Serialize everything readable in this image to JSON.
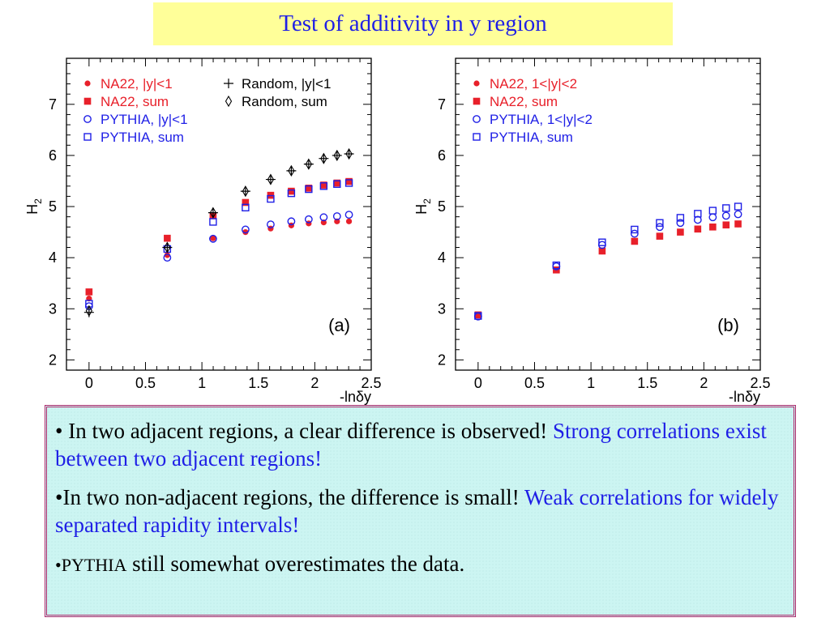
{
  "title": "Test of additivity in y region",
  "bullets": [
    {
      "marker": "•",
      "text": " In two adjacent regions, a clear difference is observed! ",
      "highlight": "Strong correlations exist between two adjacent regions!"
    },
    {
      "marker": "•",
      "text": "In two non-adjacent regions, the difference is small! ",
      "highlight": "Weak correlations for widely separated rapidity intervals!"
    },
    {
      "marker": "•",
      "smallword": "PYTHIA",
      "text": " still somewhat overestimates the data."
    }
  ],
  "chart_data": [
    {
      "type": "scatter",
      "panel_label": "(a)",
      "xlabel": "-lnδy",
      "ylabel": "H2",
      "xlim": [
        -0.2,
        2.5
      ],
      "ylim": [
        1.8,
        7.9
      ],
      "xticks": [
        "0",
        "0.5",
        "1",
        "1.5",
        "2",
        "2.5"
      ],
      "yticks": [
        "2",
        "3",
        "4",
        "5",
        "6",
        "7"
      ],
      "legend_position": "top-left",
      "series": [
        {
          "name": "NA22, |y|<1",
          "marker": "dot",
          "color": "#e8202a",
          "x": [
            0,
            0.693,
            1.099,
            1.386,
            1.609,
            1.792,
            1.946,
            2.079,
            2.197,
            2.303
          ],
          "y": [
            3.2,
            4.05,
            4.38,
            4.5,
            4.57,
            4.63,
            4.67,
            4.69,
            4.71,
            4.71
          ]
        },
        {
          "name": "NA22, sum",
          "marker": "filled-square",
          "color": "#e8202a",
          "x": [
            0,
            0.693,
            1.099,
            1.386,
            1.609,
            1.792,
            1.946,
            2.079,
            2.197,
            2.303
          ],
          "y": [
            3.33,
            4.38,
            4.82,
            5.08,
            5.22,
            5.3,
            5.36,
            5.42,
            5.46,
            5.49
          ]
        },
        {
          "name": "PYTHIA, |y|<1",
          "marker": "open-circle",
          "color": "#1f1fe6",
          "x": [
            0,
            0.693,
            1.099,
            1.386,
            1.609,
            1.792,
            1.946,
            2.079,
            2.197,
            2.303
          ],
          "y": [
            3.05,
            4.0,
            4.37,
            4.55,
            4.65,
            4.71,
            4.75,
            4.79,
            4.81,
            4.84
          ]
        },
        {
          "name": "PYTHIA,  sum",
          "marker": "open-square",
          "color": "#1f1fe6",
          "x": [
            0,
            0.693,
            1.099,
            1.386,
            1.609,
            1.792,
            1.946,
            2.079,
            2.197,
            2.303
          ],
          "y": [
            3.1,
            4.17,
            4.7,
            4.98,
            5.15,
            5.26,
            5.34,
            5.4,
            5.44,
            5.46
          ]
        },
        {
          "name": "Random, |y|<1",
          "marker": "cross",
          "color": "#000000",
          "x": [
            0,
            0.693,
            1.099,
            1.386,
            1.609,
            1.792,
            1.946,
            2.079,
            2.197,
            2.303
          ],
          "y": [
            2.93,
            4.2,
            4.88,
            5.3,
            5.53,
            5.7,
            5.83,
            5.94,
            6.0,
            6.03
          ]
        },
        {
          "name": "Random, sum",
          "marker": "diamond",
          "color": "#000000",
          "x": [
            0,
            0.693,
            1.099,
            1.386,
            1.609,
            1.792,
            1.946,
            2.079,
            2.197,
            2.303
          ],
          "y": [
            2.96,
            4.2,
            4.88,
            5.3,
            5.53,
            5.7,
            5.83,
            5.94,
            6.0,
            6.03
          ]
        }
      ]
    },
    {
      "type": "scatter",
      "panel_label": "(b)",
      "xlabel": "-lnδy",
      "ylabel": "H2",
      "xlim": [
        -0.2,
        2.5
      ],
      "ylim": [
        1.8,
        7.9
      ],
      "xticks": [
        "0",
        "0.5",
        "1",
        "1.5",
        "2",
        "2.5"
      ],
      "yticks": [
        "2",
        "3",
        "4",
        "5",
        "6",
        "7"
      ],
      "legend_position": "top-left",
      "series": [
        {
          "name": "NA22,  1<|y|<2",
          "marker": "dot",
          "color": "#e8202a",
          "x": [
            0,
            0.693,
            1.099,
            1.386,
            1.609,
            1.792,
            1.946,
            2.079,
            2.197,
            2.303
          ],
          "y": [
            2.87,
            3.75,
            4.12,
            4.32,
            4.42,
            4.5,
            4.56,
            4.6,
            4.63,
            4.65
          ]
        },
        {
          "name": "NA22,  sum",
          "marker": "filled-square",
          "color": "#e8202a",
          "x": [
            0,
            0.693,
            1.099,
            1.386,
            1.609,
            1.792,
            1.946,
            2.079,
            2.197,
            2.303
          ],
          "y": [
            2.88,
            3.76,
            4.13,
            4.32,
            4.42,
            4.5,
            4.56,
            4.6,
            4.64,
            4.66
          ]
        },
        {
          "name": "PYTHIA,  1<|y|<2",
          "marker": "open-circle",
          "color": "#1f1fe6",
          "x": [
            0,
            0.693,
            1.099,
            1.386,
            1.609,
            1.792,
            1.946,
            2.079,
            2.197,
            2.303
          ],
          "y": [
            2.85,
            3.83,
            4.25,
            4.47,
            4.6,
            4.68,
            4.74,
            4.79,
            4.82,
            4.85
          ]
        },
        {
          "name": "PYTHIA,   sum",
          "marker": "open-square",
          "color": "#1f1fe6",
          "x": [
            0,
            0.693,
            1.099,
            1.386,
            1.609,
            1.792,
            1.946,
            2.079,
            2.197,
            2.303
          ],
          "y": [
            2.86,
            3.85,
            4.3,
            4.55,
            4.68,
            4.78,
            4.86,
            4.92,
            4.97,
            5.0
          ]
        }
      ]
    }
  ]
}
